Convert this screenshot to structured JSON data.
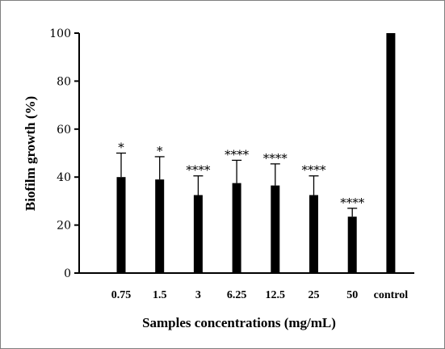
{
  "chart_data": {
    "type": "bar",
    "categories": [
      "0.75",
      "1.5",
      "3",
      "6.25",
      "12.5",
      "25",
      "50",
      "control"
    ],
    "values": [
      40,
      39,
      32.5,
      37.5,
      36.5,
      32.5,
      23.5,
      100
    ],
    "error_upper": [
      50,
      48.5,
      40.5,
      47,
      45.5,
      40.5,
      27,
      100
    ],
    "significance": [
      "*",
      "*",
      "****",
      "****",
      "****",
      "****",
      "****",
      ""
    ],
    "xlabel": "Samples concentrations (mg/mL)",
    "ylabel": "Biofilm growth (%)",
    "ylim": [
      0,
      100
    ],
    "yticks": [
      "0",
      "20",
      "40",
      "60",
      "80",
      "100"
    ],
    "bar_color": "#000000",
    "grid": false,
    "legend": "none"
  }
}
